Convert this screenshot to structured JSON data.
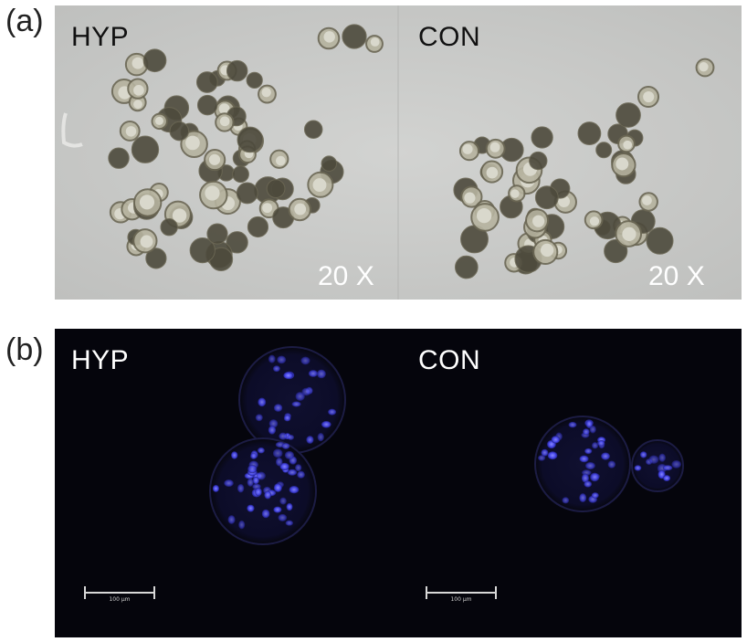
{
  "panels": [
    {
      "tag": "(a)",
      "left_label": "HYP",
      "right_label": "CON",
      "left_magnification": "20 X",
      "right_magnification": "20 X",
      "background": "#c9cac8",
      "label_color": "#111111"
    },
    {
      "tag": "(b)",
      "left_label": "HYP",
      "right_label": "CON",
      "left_scale_text": "100 µm",
      "right_scale_text": "100 µm",
      "background": "#05050c",
      "label_color": "#ffffff",
      "nuclei_color": "#4a4aff"
    }
  ]
}
